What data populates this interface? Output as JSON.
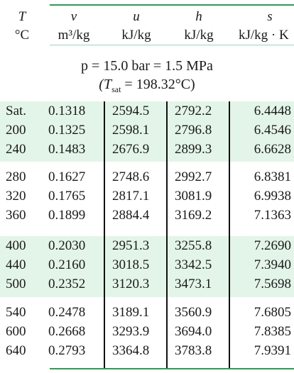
{
  "headers": {
    "T": {
      "symbol": "T",
      "unit": "°C"
    },
    "v": {
      "symbol": "v",
      "unit": "m³/kg"
    },
    "u": {
      "symbol": "u",
      "unit": "kJ/kg"
    },
    "h": {
      "symbol": "h",
      "unit": "kJ/kg"
    },
    "s": {
      "symbol": "s",
      "unit": "kJ/kg · K"
    }
  },
  "condition": {
    "pressure": "p = 15.0 bar = 1.5 MPa",
    "tsat_prefix": "(T",
    "tsat_sub": "sat",
    "tsat_value": " = 198.32°C)"
  },
  "rows": [
    {
      "T": "Sat.",
      "v": "0.1318",
      "u": "2594.5",
      "h": "2792.2",
      "s": "6.4448"
    },
    {
      "T": "200",
      "v": "0.1325",
      "u": "2598.1",
      "h": "2796.8",
      "s": "6.4546"
    },
    {
      "T": "240",
      "v": "0.1483",
      "u": "2676.9",
      "h": "2899.3",
      "s": "6.6628"
    },
    {
      "T": "280",
      "v": "0.1627",
      "u": "2748.6",
      "h": "2992.7",
      "s": "6.8381"
    },
    {
      "T": "320",
      "v": "0.1765",
      "u": "2817.1",
      "h": "3081.9",
      "s": "6.9938"
    },
    {
      "T": "360",
      "v": "0.1899",
      "u": "2884.4",
      "h": "3169.2",
      "s": "7.1363"
    },
    {
      "T": "400",
      "v": "0.2030",
      "u": "2951.3",
      "h": "3255.8",
      "s": "7.2690"
    },
    {
      "T": "440",
      "v": "0.2160",
      "u": "3018.5",
      "h": "3342.5",
      "s": "7.3940"
    },
    {
      "T": "500",
      "v": "0.2352",
      "u": "3120.3",
      "h": "3473.1",
      "s": "7.5698"
    },
    {
      "T": "540",
      "v": "0.2478",
      "u": "3189.1",
      "h": "3560.9",
      "s": "7.6805"
    },
    {
      "T": "600",
      "v": "0.2668",
      "u": "3293.9",
      "h": "3694.0",
      "s": "7.8385"
    },
    {
      "T": "640",
      "v": "0.2793",
      "u": "3364.8",
      "h": "3783.8",
      "s": "7.9391"
    }
  ],
  "colors": {
    "rule": "#2e9a58",
    "band": "#e3f5e8"
  }
}
